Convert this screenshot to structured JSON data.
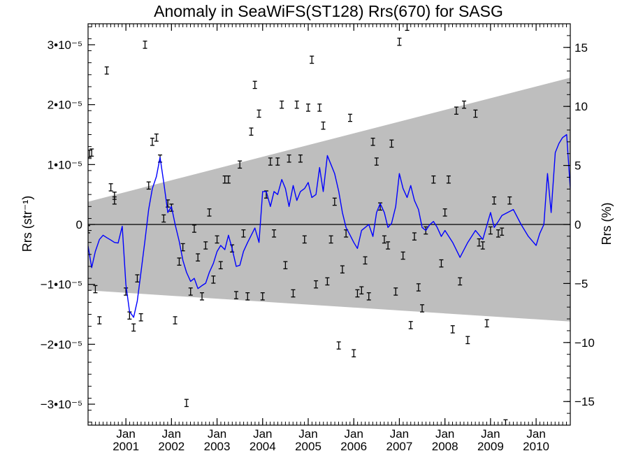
{
  "chart_data": {
    "type": "line",
    "title": "Anomaly in SeaWiFS(ST128) Rrs(670) for SASG",
    "ylabel_left": "Rrs (str⁻¹)",
    "ylabel_right": "Rrs (%)",
    "ylim": [
      -3.35e-05,
      3.35e-05
    ],
    "ylim_right": [
      -17,
      17
    ],
    "y_ticks_left": [
      {
        "value": 3e-05,
        "label": "3•10⁻⁵"
      },
      {
        "value": 2e-05,
        "label": "2•10⁻⁵"
      },
      {
        "value": 1e-05,
        "label": "1•10⁻⁵"
      },
      {
        "value": 0,
        "label": "0"
      },
      {
        "value": -1e-05,
        "label": "−1•10⁻⁵"
      },
      {
        "value": -2e-05,
        "label": "−2•10⁻⁵"
      },
      {
        "value": -3e-05,
        "label": "−3•10⁻⁵"
      }
    ],
    "y_ticks_right": [
      {
        "value": 15,
        "label": "15"
      },
      {
        "value": 10,
        "label": "10"
      },
      {
        "value": 5,
        "label": "5"
      },
      {
        "value": 0,
        "label": "0"
      },
      {
        "value": -5,
        "label": "−5"
      },
      {
        "value": -10,
        "label": "−10"
      },
      {
        "value": -15,
        "label": "−15"
      }
    ],
    "x_range": [
      2000.17,
      2010.75
    ],
    "x_ticks": [
      {
        "value": 2001.0,
        "label_top": "Jan",
        "label_bottom": "2001"
      },
      {
        "value": 2002.0,
        "label_top": "Jan",
        "label_bottom": "2002"
      },
      {
        "value": 2003.0,
        "label_top": "Jan",
        "label_bottom": "2003"
      },
      {
        "value": 2004.0,
        "label_top": "Jan",
        "label_bottom": "2004"
      },
      {
        "value": 2005.0,
        "label_top": "Jan",
        "label_bottom": "2005"
      },
      {
        "value": 2006.0,
        "label_top": "Jan",
        "label_bottom": "2006"
      },
      {
        "value": 2007.0,
        "label_top": "Jan",
        "label_bottom": "2007"
      },
      {
        "value": 2008.0,
        "label_top": "Jan",
        "label_bottom": "2008"
      },
      {
        "value": 2009.0,
        "label_top": "Jan",
        "label_bottom": "2009"
      },
      {
        "value": 2010.0,
        "label_top": "Jan",
        "label_bottom": "2010"
      }
    ],
    "zero_line": true,
    "envelope": {
      "color": "#bebebe",
      "start": {
        "x": 2000.17,
        "upper": 3.8e-06,
        "lower": -1.1e-05
      },
      "end": {
        "x": 2010.75,
        "upper": 2.45e-05,
        "lower": -1.62e-05
      }
    },
    "line_series": {
      "color": "#0000ff",
      "points": [
        [
          2000.17,
          -3.6e-06
        ],
        [
          2000.25,
          -7.2e-06
        ],
        [
          2000.33,
          -4.5e-06
        ],
        [
          2000.42,
          -2.5e-06
        ],
        [
          2000.5,
          -1.8e-06
        ],
        [
          2000.58,
          -2.2e-06
        ],
        [
          2000.67,
          -2.6e-06
        ],
        [
          2000.75,
          -3e-06
        ],
        [
          2000.83,
          -3.1e-06
        ],
        [
          2000.92,
          -3e-07
        ],
        [
          2001.0,
          -1e-05
        ],
        [
          2001.08,
          -1.45e-05
        ],
        [
          2001.17,
          -1.55e-05
        ],
        [
          2001.25,
          -1.28e-05
        ],
        [
          2001.33,
          -8e-06
        ],
        [
          2001.42,
          -2.6e-06
        ],
        [
          2001.5,
          2.5e-06
        ],
        [
          2001.58,
          6e-06
        ],
        [
          2001.67,
          8e-06
        ],
        [
          2001.75,
          1.12e-05
        ],
        [
          2001.83,
          7e-06
        ],
        [
          2001.92,
          2e-06
        ],
        [
          2002.0,
          3e-06
        ],
        [
          2002.08,
          0.0
        ],
        [
          2002.17,
          -2.8e-06
        ],
        [
          2002.25,
          -6e-06
        ],
        [
          2002.33,
          -8e-06
        ],
        [
          2002.42,
          -9.5e-06
        ],
        [
          2002.5,
          -9e-06
        ],
        [
          2002.58,
          -1.07e-05
        ],
        [
          2002.67,
          -1.02e-05
        ],
        [
          2002.75,
          -9.8e-06
        ],
        [
          2002.83,
          -8e-06
        ],
        [
          2002.92,
          -6.5e-06
        ],
        [
          2003.0,
          -4.5e-06
        ],
        [
          2003.08,
          -3.5e-06
        ],
        [
          2003.17,
          -4.2e-06
        ],
        [
          2003.25,
          -1.8e-06
        ],
        [
          2003.33,
          -4e-06
        ],
        [
          2003.42,
          -7e-06
        ],
        [
          2003.5,
          -6.8e-06
        ],
        [
          2003.58,
          -4.5e-06
        ],
        [
          2003.67,
          -3e-06
        ],
        [
          2003.75,
          -1.8e-06
        ],
        [
          2003.83,
          -6e-07
        ],
        [
          2003.92,
          -3e-06
        ],
        [
          2004.0,
          5.5e-06
        ],
        [
          2004.08,
          5.5e-06
        ],
        [
          2004.17,
          3e-06
        ],
        [
          2004.25,
          5.5e-06
        ],
        [
          2004.33,
          5e-06
        ],
        [
          2004.42,
          7.5e-06
        ],
        [
          2004.5,
          6e-06
        ],
        [
          2004.58,
          3e-06
        ],
        [
          2004.67,
          6.5e-06
        ],
        [
          2004.75,
          4e-06
        ],
        [
          2004.83,
          5.5e-06
        ],
        [
          2004.92,
          6e-06
        ],
        [
          2005.0,
          7e-06
        ],
        [
          2005.08,
          4.5e-06
        ],
        [
          2005.17,
          5e-06
        ],
        [
          2005.25,
          9.5e-06
        ],
        [
          2005.33,
          5.5e-06
        ],
        [
          2005.42,
          1.15e-05
        ],
        [
          2005.5,
          1e-05
        ],
        [
          2005.58,
          8.5e-06
        ],
        [
          2005.67,
          5.5e-06
        ],
        [
          2005.75,
          2e-06
        ],
        [
          2005.83,
          -5e-07
        ],
        [
          2005.92,
          -1.8e-06
        ],
        [
          2006.0,
          -3e-06
        ],
        [
          2006.08,
          -4e-06
        ],
        [
          2006.17,
          -1e-06
        ],
        [
          2006.25,
          -5e-07
        ],
        [
          2006.33,
          0.0
        ],
        [
          2006.42,
          -2e-06
        ],
        [
          2006.5,
          2e-06
        ],
        [
          2006.58,
          3.5e-06
        ],
        [
          2006.67,
          2e-06
        ],
        [
          2006.75,
          -5e-07
        ],
        [
          2006.83,
          2e-07
        ],
        [
          2006.92,
          3e-06
        ],
        [
          2007.0,
          8.5e-06
        ],
        [
          2007.08,
          6e-06
        ],
        [
          2007.17,
          4.5e-06
        ],
        [
          2007.25,
          6.5e-06
        ],
        [
          2007.33,
          4e-06
        ],
        [
          2007.42,
          2.5e-06
        ],
        [
          2007.5,
          -5e-07
        ],
        [
          2007.58,
          -1e-06
        ],
        [
          2007.67,
          0.0
        ],
        [
          2007.75,
          5e-07
        ],
        [
          2007.83,
          -5e-07
        ],
        [
          2007.92,
          -2e-06
        ],
        [
          2008.0,
          -1e-06
        ],
        [
          2008.17,
          -3e-06
        ],
        [
          2008.33,
          -5.5e-06
        ],
        [
          2008.5,
          -3e-06
        ],
        [
          2008.67,
          -1e-06
        ],
        [
          2008.83,
          -2.5e-06
        ],
        [
          2009.0,
          2e-06
        ],
        [
          2009.08,
          -5e-07
        ],
        [
          2009.17,
          5e-07
        ],
        [
          2009.25,
          1.5e-06
        ],
        [
          2009.5,
          2.5e-06
        ],
        [
          2009.67,
          0.0
        ],
        [
          2009.83,
          -2e-06
        ],
        [
          2010.0,
          -3.5e-06
        ],
        [
          2010.08,
          -1.5e-06
        ],
        [
          2010.17,
          0.0
        ],
        [
          2010.25,
          8.5e-06
        ],
        [
          2010.33,
          2e-06
        ],
        [
          2010.42,
          1.2e-05
        ],
        [
          2010.5,
          1.35e-05
        ],
        [
          2010.58,
          1.45e-05
        ],
        [
          2010.67,
          1.5e-05
        ],
        [
          2010.75,
          6e-06
        ]
      ]
    },
    "error_bars": {
      "color": "#000000",
      "half_width": 6e-07,
      "points": [
        [
          2000.17,
          -8e-07
        ],
        [
          2000.2,
          1.18e-05
        ],
        [
          2000.25,
          1.2e-05
        ],
        [
          2000.33,
          -1.08e-05
        ],
        [
          2000.42,
          -1.6e-05
        ],
        [
          2000.58,
          2.57e-05
        ],
        [
          2000.67,
          6.2e-06
        ],
        [
          2000.75,
          4e-06
        ],
        [
          2000.75,
          4.8e-06
        ],
        [
          2001.0,
          -1.12e-05
        ],
        [
          2001.08,
          -1.52e-05
        ],
        [
          2001.17,
          -1.72e-05
        ],
        [
          2001.25,
          -9e-06
        ],
        [
          2001.33,
          -1.55e-05
        ],
        [
          2001.42,
          3e-05
        ],
        [
          2001.5,
          6.5e-06
        ],
        [
          2001.58,
          1.38e-05
        ],
        [
          2001.67,
          1.45e-05
        ],
        [
          2001.75,
          1.1e-05
        ],
        [
          2001.83,
          1e-06
        ],
        [
          2001.92,
          3.5e-06
        ],
        [
          2002.0,
          2.8e-06
        ],
        [
          2002.08,
          -1.6e-05
        ],
        [
          2002.17,
          -6.2e-06
        ],
        [
          2002.25,
          -3.8e-06
        ],
        [
          2002.33,
          -2.98e-05
        ],
        [
          2002.42,
          -1.12e-05
        ],
        [
          2002.5,
          -7e-07
        ],
        [
          2002.58,
          -5.5e-06
        ],
        [
          2002.67,
          -1.2e-05
        ],
        [
          2002.75,
          -3.5e-06
        ],
        [
          2002.83,
          2e-06
        ],
        [
          2002.92,
          -9.2e-06
        ],
        [
          2003.0,
          -2.5e-06
        ],
        [
          2003.08,
          -6.8e-06
        ],
        [
          2003.17,
          7.5e-06
        ],
        [
          2003.25,
          7.5e-06
        ],
        [
          2003.33,
          -4e-06
        ],
        [
          2003.42,
          -1.18e-05
        ],
        [
          2003.5,
          1e-05
        ],
        [
          2003.58,
          -1.5e-06
        ],
        [
          2003.67,
          -1.2e-05
        ],
        [
          2003.75,
          1.55e-05
        ],
        [
          2003.83,
          2.33e-05
        ],
        [
          2003.92,
          1.85e-05
        ],
        [
          2004.0,
          -1.2e-05
        ],
        [
          2004.08,
          5e-06
        ],
        [
          2004.17,
          1.05e-05
        ],
        [
          2004.25,
          -1.5e-06
        ],
        [
          2004.33,
          1.05e-05
        ],
        [
          2004.42,
          2e-05
        ],
        [
          2004.5,
          -6.8e-06
        ],
        [
          2004.58,
          1.1e-05
        ],
        [
          2004.67,
          -1.15e-05
        ],
        [
          2004.75,
          2e-05
        ],
        [
          2004.83,
          1.1e-05
        ],
        [
          2004.92,
          -2.5e-06
        ],
        [
          2005.0,
          1.95e-05
        ],
        [
          2005.08,
          2.75e-05
        ],
        [
          2005.17,
          -1e-05
        ],
        [
          2005.25,
          1.95e-05
        ],
        [
          2005.33,
          1.65e-05
        ],
        [
          2005.42,
          -9.5e-06
        ],
        [
          2005.5,
          -2.5e-06
        ],
        [
          2005.58,
          3.8e-06
        ],
        [
          2005.67,
          -2.02e-05
        ],
        [
          2005.75,
          -7.5e-06
        ],
        [
          2005.83,
          -1.5e-06
        ],
        [
          2005.92,
          1.78e-05
        ],
        [
          2006.0,
          -2.15e-05
        ],
        [
          2006.08,
          -1.15e-05
        ],
        [
          2006.17,
          -1.1e-05
        ],
        [
          2006.25,
          -6e-06
        ],
        [
          2006.33,
          -1.2e-05
        ],
        [
          2006.42,
          1.38e-05
        ],
        [
          2006.5,
          1.05e-05
        ],
        [
          2006.58,
          3e-06
        ],
        [
          2006.67,
          -2.5e-06
        ],
        [
          2006.75,
          -3.5e-06
        ],
        [
          2006.83,
          1.35e-05
        ],
        [
          2006.92,
          -1.12e-05
        ],
        [
          2007.0,
          3.05e-05
        ],
        [
          2007.08,
          -5.2e-06
        ],
        [
          2007.17,
          3.3e-05
        ],
        [
          2007.25,
          -1.68e-05
        ],
        [
          2007.33,
          -2e-06
        ],
        [
          2007.42,
          -1.05e-05
        ],
        [
          2007.5,
          -1.4e-05
        ],
        [
          2007.58,
          -1e-06
        ],
        [
          2007.75,
          7.5e-06
        ],
        [
          2007.92,
          -6.5e-06
        ],
        [
          2008.0,
          2e-06
        ],
        [
          2008.08,
          7.5e-06
        ],
        [
          2008.17,
          -1.75e-05
        ],
        [
          2008.25,
          1.9e-05
        ],
        [
          2008.33,
          -9.5e-06
        ],
        [
          2008.42,
          2e-05
        ],
        [
          2008.5,
          -1.93e-05
        ],
        [
          2008.67,
          1.85e-05
        ],
        [
          2008.75,
          -3e-06
        ],
        [
          2008.83,
          -3.5e-06
        ],
        [
          2008.92,
          -1.65e-05
        ],
        [
          2009.0,
          -1e-06
        ],
        [
          2009.08,
          4e-06
        ],
        [
          2009.17,
          -1.5e-06
        ],
        [
          2009.25,
          -1.2e-06
        ],
        [
          2009.33,
          -3.32e-05
        ],
        [
          2009.42,
          4e-06
        ],
        [
          2009.5,
          -3.5e-05
        ]
      ]
    }
  }
}
